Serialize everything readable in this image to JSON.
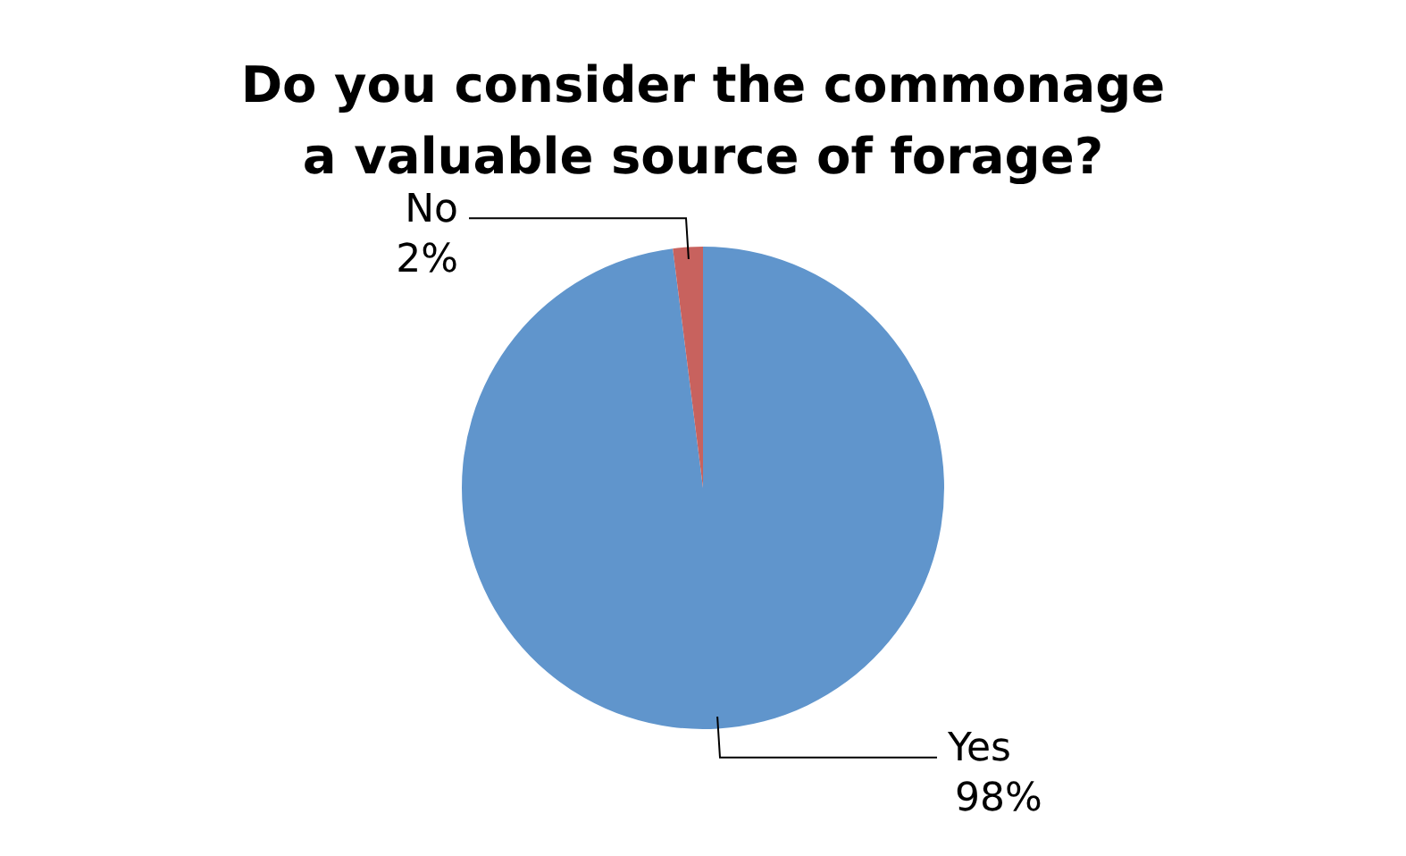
{
  "chart_data": {
    "type": "pie",
    "title": "Do you consider the commonage a valuable source of forage?",
    "categories": [
      "Yes",
      "No"
    ],
    "values": [
      98,
      2
    ],
    "colors": [
      "#6095cc",
      "#c8625e"
    ],
    "value_labels": [
      "98%",
      "2%"
    ],
    "legend": false
  }
}
